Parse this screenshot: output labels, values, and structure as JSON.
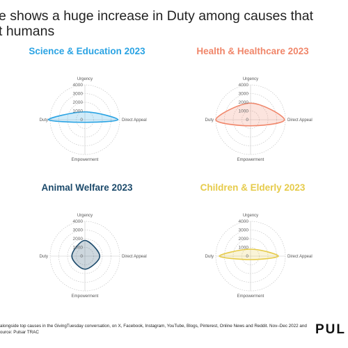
{
  "headline": {
    "line1": "e shows a huge increase in Duty among causes that",
    "line2": "t humans"
  },
  "colors": {
    "science": "#2aa3e3",
    "health": "#f0866a",
    "animal": "#1c4a6b",
    "children": "#e6cb4a"
  },
  "chart_data": [
    {
      "type": "radar",
      "title": "Science & Education 2023",
      "axes": [
        "Urgency",
        "Direct Appeal",
        "Empowerment",
        "Duty"
      ],
      "ticks": [
        "4000",
        "3000",
        "2000",
        "1000",
        "0"
      ],
      "rlim": [
        0,
        4000
      ],
      "values": [
        900,
        3800,
        300,
        4200
      ]
    },
    {
      "type": "radar",
      "title": "Health & Healthcare 2023",
      "axes": [
        "Urgency",
        "Direct Appeal",
        "Empowerment",
        "Duty"
      ],
      "ticks": [
        "4000",
        "3000",
        "2000",
        "1000",
        "0"
      ],
      "rlim": [
        0,
        4000
      ],
      "values": [
        1900,
        3900,
        700,
        4000
      ]
    },
    {
      "type": "radar",
      "title": "Animal Welfare 2023",
      "axes": [
        "Urgency",
        "Direct Appeal",
        "Empowerment",
        "Duty"
      ],
      "ticks": [
        "4000",
        "3000",
        "2000",
        "1000",
        "0"
      ],
      "rlim": [
        0,
        4000
      ],
      "values": [
        1800,
        1700,
        1500,
        1500
      ]
    },
    {
      "type": "radar",
      "title": "Children & Elderly 2023",
      "axes": [
        "Urgency",
        "Direct Appeal",
        "Empowerment",
        "Duty"
      ],
      "ticks": [
        "4000",
        "3000",
        "2000",
        "1000",
        "0"
      ],
      "rlim": [
        0,
        4000
      ],
      "values": [
        800,
        3200,
        400,
        3600
      ]
    }
  ],
  "footnote": {
    "line1": "alongside top causes in the GivingTuesday conversation, on X, Facebook, Instagram, YouTube, Blogs, Pinterest, Online News and Reddit. Nov–Dec 2022 and",
    "line2": "ource: Pulsar TRAC"
  },
  "brand": "PUL"
}
